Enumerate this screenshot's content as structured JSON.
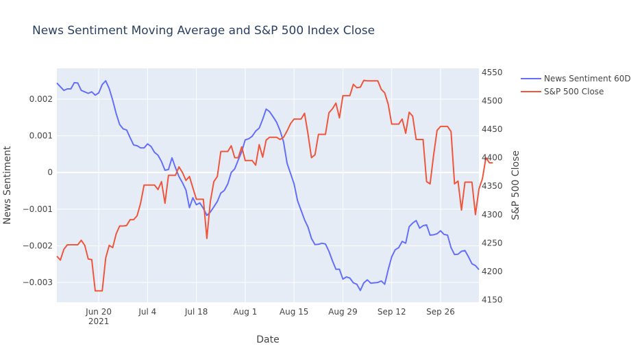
{
  "chart_data": {
    "type": "line",
    "title": "News Sentiment Moving Average and S&P 500 Index Close",
    "xlabel": "Date",
    "ylabel": "News Sentiment",
    "y2label": "S&P 500 Close",
    "x_ticks": [
      {
        "date": "2021-06-20",
        "label": "Jun 20",
        "sublabel": "2021"
      },
      {
        "date": "2021-07-04",
        "label": "Jul 4",
        "sublabel": ""
      },
      {
        "date": "2021-07-18",
        "label": "Jul 18",
        "sublabel": ""
      },
      {
        "date": "2021-08-01",
        "label": "Aug 1",
        "sublabel": ""
      },
      {
        "date": "2021-08-15",
        "label": "Aug 15",
        "sublabel": ""
      },
      {
        "date": "2021-08-29",
        "label": "Aug 29",
        "sublabel": ""
      },
      {
        "date": "2021-09-12",
        "label": "Sep 12",
        "sublabel": ""
      },
      {
        "date": "2021-09-26",
        "label": "Sep 26",
        "sublabel": ""
      }
    ],
    "xlim": [
      "2021-06-08",
      "2021-10-07"
    ],
    "ylim": [
      -0.00354,
      0.00284
    ],
    "y_ticks": [
      {
        "value": 0.002,
        "label": "0.002"
      },
      {
        "value": 0.001,
        "label": "0.001"
      },
      {
        "value": 0,
        "label": "0"
      },
      {
        "value": -0.001,
        "label": "−0.001"
      },
      {
        "value": -0.002,
        "label": "−0.002"
      },
      {
        "value": -0.003,
        "label": "−0.003"
      }
    ],
    "y2lim": [
      4146,
      4557
    ],
    "y2_ticks": [
      4150,
      4200,
      4250,
      4300,
      4350,
      4400,
      4450,
      4500,
      4550
    ],
    "grid": true,
    "legend_position": "right",
    "series": [
      {
        "name": "News Sentiment 60D",
        "axis": "y",
        "color": "#636efa",
        "points": [
          [
            "2021-06-08",
            0.00244
          ],
          [
            "2021-06-09",
            0.00234
          ],
          [
            "2021-06-10",
            0.00224
          ],
          [
            "2021-06-11",
            0.00228
          ],
          [
            "2021-06-12",
            0.00228
          ],
          [
            "2021-06-13",
            0.00245
          ],
          [
            "2021-06-14",
            0.00244
          ],
          [
            "2021-06-15",
            0.00224
          ],
          [
            "2021-06-16",
            0.0022
          ],
          [
            "2021-06-17",
            0.00216
          ],
          [
            "2021-06-18",
            0.0022
          ],
          [
            "2021-06-19",
            0.00211
          ],
          [
            "2021-06-20",
            0.00217
          ],
          [
            "2021-06-21",
            0.0024
          ],
          [
            "2021-06-22",
            0.0025
          ],
          [
            "2021-06-23",
            0.00229
          ],
          [
            "2021-06-24",
            0.00197
          ],
          [
            "2021-06-25",
            0.00161
          ],
          [
            "2021-06-26",
            0.00131
          ],
          [
            "2021-06-27",
            0.00119
          ],
          [
            "2021-06-28",
            0.00116
          ],
          [
            "2021-06-29",
            0.00095
          ],
          [
            "2021-06-30",
            0.00075
          ],
          [
            "2021-07-01",
            0.00073
          ],
          [
            "2021-07-02",
            0.00067
          ],
          [
            "2021-07-03",
            0.00067
          ],
          [
            "2021-07-04",
            0.00078
          ],
          [
            "2021-07-05",
            0.00071
          ],
          [
            "2021-07-06",
            0.00055
          ],
          [
            "2021-07-07",
            0.00047
          ],
          [
            "2021-07-08",
            0.0003
          ],
          [
            "2021-07-09",
            6e-05
          ],
          [
            "2021-07-10",
            8e-05
          ],
          [
            "2021-07-11",
            0.0004
          ],
          [
            "2021-07-12",
            0.00013
          ],
          [
            "2021-07-13",
            -0.00011
          ],
          [
            "2021-07-14",
            -0.00028
          ],
          [
            "2021-07-15",
            -0.00048
          ],
          [
            "2021-07-16",
            -0.00096
          ],
          [
            "2021-07-17",
            -0.00069
          ],
          [
            "2021-07-18",
            -0.00088
          ],
          [
            "2021-07-19",
            -0.00083
          ],
          [
            "2021-07-20",
            -0.00098
          ],
          [
            "2021-07-21",
            -0.00117
          ],
          [
            "2021-07-22",
            -0.00108
          ],
          [
            "2021-07-23",
            -0.00094
          ],
          [
            "2021-07-24",
            -0.00079
          ],
          [
            "2021-07-25",
            -0.00056
          ],
          [
            "2021-07-26",
            -0.00049
          ],
          [
            "2021-07-27",
            -0.00031
          ],
          [
            "2021-07-28",
            0.0
          ],
          [
            "2021-07-29",
            0.0001
          ],
          [
            "2021-07-30",
            0.00034
          ],
          [
            "2021-07-31",
            0.00057
          ],
          [
            "2021-08-01",
            0.00089
          ],
          [
            "2021-08-02",
            0.00092
          ],
          [
            "2021-08-03",
            0.00099
          ],
          [
            "2021-08-04",
            0.00113
          ],
          [
            "2021-08-05",
            0.00121
          ],
          [
            "2021-08-06",
            0.00145
          ],
          [
            "2021-08-07",
            0.00173
          ],
          [
            "2021-08-08",
            0.00166
          ],
          [
            "2021-08-09",
            0.00152
          ],
          [
            "2021-08-10",
            0.00137
          ],
          [
            "2021-08-11",
            0.00114
          ],
          [
            "2021-08-12",
            0.00083
          ],
          [
            "2021-08-13",
            0.00025
          ],
          [
            "2021-08-14",
            -3e-05
          ],
          [
            "2021-08-15",
            -0.00031
          ],
          [
            "2021-08-16",
            -0.00077
          ],
          [
            "2021-08-17",
            -0.00103
          ],
          [
            "2021-08-18",
            -0.00129
          ],
          [
            "2021-08-19",
            -0.00149
          ],
          [
            "2021-08-20",
            -0.0018
          ],
          [
            "2021-08-21",
            -0.00197
          ],
          [
            "2021-08-22",
            -0.00196
          ],
          [
            "2021-08-23",
            -0.00193
          ],
          [
            "2021-08-24",
            -0.00195
          ],
          [
            "2021-08-25",
            -0.00215
          ],
          [
            "2021-08-26",
            -0.00241
          ],
          [
            "2021-08-27",
            -0.00264
          ],
          [
            "2021-08-28",
            -0.00264
          ],
          [
            "2021-08-29",
            -0.00291
          ],
          [
            "2021-08-30",
            -0.00285
          ],
          [
            "2021-08-31",
            -0.00288
          ],
          [
            "2021-09-01",
            -0.00301
          ],
          [
            "2021-09-02",
            -0.00305
          ],
          [
            "2021-09-03",
            -0.00322
          ],
          [
            "2021-09-04",
            -0.00301
          ],
          [
            "2021-09-05",
            -0.00293
          ],
          [
            "2021-09-06",
            -0.00302
          ],
          [
            "2021-09-07",
            -0.00301
          ],
          [
            "2021-09-08",
            -0.003
          ],
          [
            "2021-09-09",
            -0.00296
          ],
          [
            "2021-09-10",
            -0.00305
          ],
          [
            "2021-09-11",
            -0.00265
          ],
          [
            "2021-09-12",
            -0.0023
          ],
          [
            "2021-09-13",
            -0.00211
          ],
          [
            "2021-09-14",
            -0.00205
          ],
          [
            "2021-09-15",
            -0.00188
          ],
          [
            "2021-09-16",
            -0.00193
          ],
          [
            "2021-09-17",
            -0.00148
          ],
          [
            "2021-09-18",
            -0.00138
          ],
          [
            "2021-09-19",
            -0.00131
          ],
          [
            "2021-09-20",
            -0.00152
          ],
          [
            "2021-09-21",
            -0.00145
          ],
          [
            "2021-09-22",
            -0.00143
          ],
          [
            "2021-09-23",
            -0.00171
          ],
          [
            "2021-09-24",
            -0.0017
          ],
          [
            "2021-09-25",
            -0.00167
          ],
          [
            "2021-09-26",
            -0.00159
          ],
          [
            "2021-09-27",
            -0.00169
          ],
          [
            "2021-09-28",
            -0.00171
          ],
          [
            "2021-09-29",
            -0.00205
          ],
          [
            "2021-09-30",
            -0.00224
          ],
          [
            "2021-10-01",
            -0.00223
          ],
          [
            "2021-10-02",
            -0.00215
          ],
          [
            "2021-10-03",
            -0.00213
          ],
          [
            "2021-10-04",
            -0.0023
          ],
          [
            "2021-10-05",
            -0.00249
          ],
          [
            "2021-10-06",
            -0.00254
          ],
          [
            "2021-10-07",
            -0.00265
          ]
        ]
      },
      {
        "name": "S&P 500 Close",
        "axis": "y2",
        "color": "#ef553b",
        "points": [
          [
            "2021-06-08",
            4227
          ],
          [
            "2021-06-09",
            4220
          ],
          [
            "2021-06-10",
            4239
          ],
          [
            "2021-06-11",
            4247
          ],
          [
            "2021-06-14",
            4247
          ],
          [
            "2021-06-15",
            4255
          ],
          [
            "2021-06-16",
            4246
          ],
          [
            "2021-06-17",
            4222
          ],
          [
            "2021-06-18",
            4221
          ],
          [
            "2021-06-19",
            4166
          ],
          [
            "2021-06-20",
            4166
          ],
          [
            "2021-06-21",
            4166
          ],
          [
            "2021-06-22",
            4224
          ],
          [
            "2021-06-23",
            4246
          ],
          [
            "2021-06-24",
            4242
          ],
          [
            "2021-06-25",
            4266
          ],
          [
            "2021-06-26",
            4280
          ],
          [
            "2021-06-27",
            4280
          ],
          [
            "2021-06-28",
            4281
          ],
          [
            "2021-06-29",
            4291
          ],
          [
            "2021-06-30",
            4291
          ],
          [
            "2021-07-01",
            4298
          ],
          [
            "2021-07-02",
            4320
          ],
          [
            "2021-07-03",
            4352
          ],
          [
            "2021-07-04",
            4352
          ],
          [
            "2021-07-05",
            4352
          ],
          [
            "2021-07-06",
            4352
          ],
          [
            "2021-07-07",
            4344
          ],
          [
            "2021-07-08",
            4358
          ],
          [
            "2021-07-09",
            4320
          ],
          [
            "2021-07-10",
            4369
          ],
          [
            "2021-07-11",
            4369
          ],
          [
            "2021-07-12",
            4369
          ],
          [
            "2021-07-13",
            4384
          ],
          [
            "2021-07-14",
            4374
          ],
          [
            "2021-07-15",
            4360
          ],
          [
            "2021-07-16",
            4367
          ],
          [
            "2021-07-17",
            4347
          ],
          [
            "2021-07-18",
            4327
          ],
          [
            "2021-07-19",
            4327
          ],
          [
            "2021-07-20",
            4327
          ],
          [
            "2021-07-21",
            4258
          ],
          [
            "2021-07-22",
            4323
          ],
          [
            "2021-07-23",
            4358
          ],
          [
            "2021-07-24",
            4367
          ],
          [
            "2021-07-25",
            4411
          ],
          [
            "2021-07-26",
            4411
          ],
          [
            "2021-07-27",
            4411
          ],
          [
            "2021-07-28",
            4421
          ],
          [
            "2021-07-29",
            4400
          ],
          [
            "2021-07-30",
            4400
          ],
          [
            "2021-07-31",
            4419
          ],
          [
            "2021-08-01",
            4395
          ],
          [
            "2021-08-02",
            4395
          ],
          [
            "2021-08-03",
            4395
          ],
          [
            "2021-08-04",
            4387
          ],
          [
            "2021-08-05",
            4423
          ],
          [
            "2021-08-06",
            4401
          ],
          [
            "2021-08-07",
            4431
          ],
          [
            "2021-08-08",
            4436
          ],
          [
            "2021-08-09",
            4436
          ],
          [
            "2021-08-10",
            4436
          ],
          [
            "2021-08-11",
            4432
          ],
          [
            "2021-08-12",
            4436
          ],
          [
            "2021-08-13",
            4447
          ],
          [
            "2021-08-14",
            4460
          ],
          [
            "2021-08-15",
            4468
          ],
          [
            "2021-08-16",
            4468
          ],
          [
            "2021-08-17",
            4468
          ],
          [
            "2021-08-18",
            4478
          ],
          [
            "2021-08-19",
            4442
          ],
          [
            "2021-08-20",
            4400
          ],
          [
            "2021-08-21",
            4405
          ],
          [
            "2021-08-22",
            4441
          ],
          [
            "2021-08-23",
            4441
          ],
          [
            "2021-08-24",
            4441
          ],
          [
            "2021-08-25",
            4479
          ],
          [
            "2021-08-26",
            4486
          ],
          [
            "2021-08-27",
            4496
          ],
          [
            "2021-08-28",
            4470
          ],
          [
            "2021-08-29",
            4509
          ],
          [
            "2021-08-30",
            4509
          ],
          [
            "2021-08-31",
            4509
          ],
          [
            "2021-09-01",
            4529
          ],
          [
            "2021-09-02",
            4523
          ],
          [
            "2021-09-03",
            4524
          ],
          [
            "2021-09-04",
            4536
          ],
          [
            "2021-09-05",
            4535
          ],
          [
            "2021-09-06",
            4535
          ],
          [
            "2021-09-07",
            4535
          ],
          [
            "2021-09-08",
            4535
          ],
          [
            "2021-09-09",
            4520
          ],
          [
            "2021-09-10",
            4514
          ],
          [
            "2021-09-11",
            4494
          ],
          [
            "2021-09-12",
            4459
          ],
          [
            "2021-09-13",
            4459
          ],
          [
            "2021-09-14",
            4459
          ],
          [
            "2021-09-15",
            4468
          ],
          [
            "2021-09-16",
            4443
          ],
          [
            "2021-09-17",
            4480
          ],
          [
            "2021-09-18",
            4473
          ],
          [
            "2021-09-19",
            4432
          ],
          [
            "2021-09-20",
            4432
          ],
          [
            "2021-09-21",
            4432
          ],
          [
            "2021-09-22",
            4358
          ],
          [
            "2021-09-23",
            4354
          ],
          [
            "2021-09-24",
            4404
          ],
          [
            "2021-09-25",
            4448
          ],
          [
            "2021-09-26",
            4455
          ],
          [
            "2021-09-27",
            4455
          ],
          [
            "2021-09-28",
            4455
          ],
          [
            "2021-09-29",
            4446
          ],
          [
            "2021-09-30",
            4354
          ],
          [
            "2021-10-01",
            4359
          ],
          [
            "2021-10-02",
            4308
          ],
          [
            "2021-10-03",
            4357
          ],
          [
            "2021-10-04",
            4357
          ],
          [
            "2021-10-05",
            4357
          ],
          [
            "2021-10-06",
            4300
          ],
          [
            "2021-10-07",
            4345
          ],
          [
            "2021-10-08",
            4363
          ],
          [
            "2021-10-09",
            4400
          ],
          [
            "2021-10-10",
            4391
          ],
          [
            "2021-10-11",
            4391
          ]
        ]
      }
    ]
  }
}
